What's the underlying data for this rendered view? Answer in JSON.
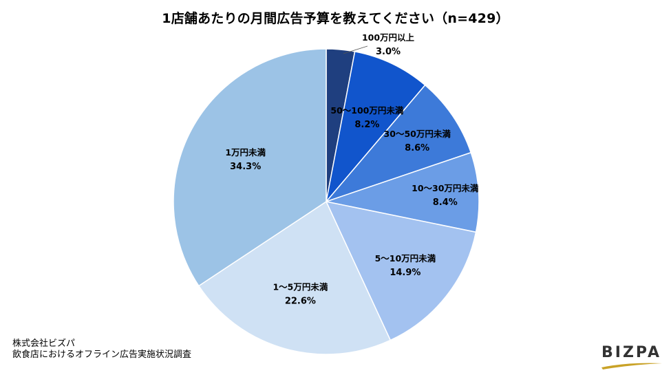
{
  "chart_data": {
    "type": "pie",
    "title": "1店舗あたりの月間広告予算を教えてください（n=429）",
    "unit": "%",
    "start": "12 o'clock",
    "direction": "clockwise",
    "slices": [
      {
        "label": "100万円以上",
        "value": 3.0,
        "display": "3.0%",
        "color": "#1f3f7f"
      },
      {
        "label": "50～100万円未満",
        "value": 8.2,
        "display": "8.2%",
        "color": "#1155cc"
      },
      {
        "label": "30～50万円未満",
        "value": 8.6,
        "display": "8.6%",
        "color": "#3d7ad9"
      },
      {
        "label": "10～30万円未満",
        "value": 8.4,
        "display": "8.4%",
        "color": "#6b9de6"
      },
      {
        "label": "5～10万円未満",
        "value": 14.9,
        "display": "14.9%",
        "color": "#a3c2f0"
      },
      {
        "label": "1～5万円未満",
        "value": 22.6,
        "display": "22.6%",
        "color": "#cfe1f4"
      },
      {
        "label": "1万円未満",
        "value": 34.3,
        "display": "34.3%",
        "color": "#9cc3e6"
      }
    ]
  },
  "source": {
    "company": "株式会社ビズパ",
    "survey": "飲食店におけるオフライン広告実施状況調査"
  },
  "logo": {
    "text": "BIZPA",
    "color": "#2b2b2b",
    "accent_color": "#c9a227"
  }
}
